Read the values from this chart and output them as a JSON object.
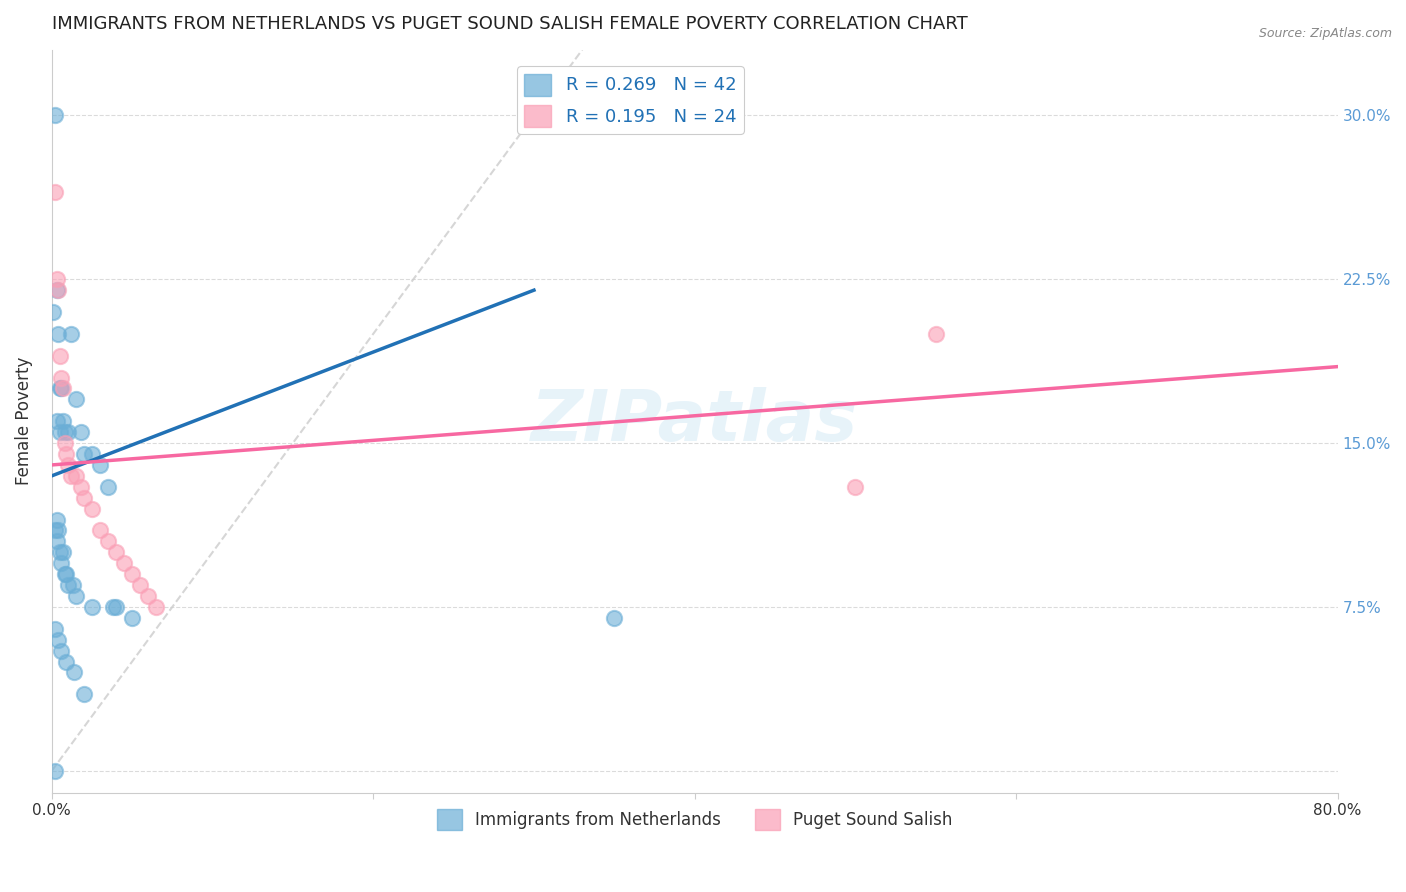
{
  "title": "IMMIGRANTS FROM NETHERLANDS VS PUGET SOUND SALISH FEMALE POVERTY CORRELATION CHART",
  "source": "Source: ZipAtlas.com",
  "ylabel": "Female Poverty",
  "yticks": [
    0.0,
    0.075,
    0.15,
    0.225,
    0.3
  ],
  "ytick_labels": [
    "",
    "7.5%",
    "15.0%",
    "22.5%",
    "30.0%"
  ],
  "xlim": [
    0.0,
    0.8
  ],
  "ylim": [
    -0.01,
    0.33
  ],
  "watermark": "ZIPatlas",
  "legend_r1": "R = 0.269",
  "legend_n1": "N = 42",
  "legend_r2": "R = 0.195",
  "legend_n2": "N = 24",
  "color_blue": "#6baed6",
  "color_pink": "#fa9fb5",
  "color_blue_line": "#2171b5",
  "color_pink_line": "#f768a1",
  "color_diag": "#cccccc",
  "scatter_blue_x": [
    0.002,
    0.003,
    0.001,
    0.004,
    0.006,
    0.005,
    0.003,
    0.007,
    0.008,
    0.005,
    0.01,
    0.012,
    0.015,
    0.018,
    0.02,
    0.025,
    0.03,
    0.035,
    0.04,
    0.05,
    0.002,
    0.003,
    0.004,
    0.003,
    0.005,
    0.007,
    0.006,
    0.008,
    0.009,
    0.01,
    0.013,
    0.015,
    0.025,
    0.038,
    0.002,
    0.004,
    0.006,
    0.009,
    0.014,
    0.02,
    0.35,
    0.002
  ],
  "scatter_blue_y": [
    0.3,
    0.22,
    0.21,
    0.2,
    0.175,
    0.175,
    0.16,
    0.16,
    0.155,
    0.155,
    0.155,
    0.2,
    0.17,
    0.155,
    0.145,
    0.145,
    0.14,
    0.13,
    0.075,
    0.07,
    0.11,
    0.115,
    0.11,
    0.105,
    0.1,
    0.1,
    0.095,
    0.09,
    0.09,
    0.085,
    0.085,
    0.08,
    0.075,
    0.075,
    0.065,
    0.06,
    0.055,
    0.05,
    0.045,
    0.035,
    0.07,
    0.0
  ],
  "scatter_pink_x": [
    0.002,
    0.003,
    0.004,
    0.005,
    0.006,
    0.007,
    0.008,
    0.009,
    0.01,
    0.012,
    0.015,
    0.018,
    0.02,
    0.025,
    0.03,
    0.035,
    0.04,
    0.045,
    0.05,
    0.055,
    0.06,
    0.065,
    0.5,
    0.55
  ],
  "scatter_pink_y": [
    0.265,
    0.225,
    0.22,
    0.19,
    0.18,
    0.175,
    0.15,
    0.145,
    0.14,
    0.135,
    0.135,
    0.13,
    0.125,
    0.12,
    0.11,
    0.105,
    0.1,
    0.095,
    0.09,
    0.085,
    0.08,
    0.075,
    0.13,
    0.2
  ],
  "blue_line_x": [
    0.0,
    0.3
  ],
  "blue_line_y": [
    0.135,
    0.22
  ],
  "pink_line_x": [
    0.0,
    0.8
  ],
  "pink_line_y": [
    0.14,
    0.185
  ],
  "diag_line_x": [
    0.0,
    0.33
  ],
  "diag_line_y": [
    0.0,
    0.33
  ],
  "legend1_label": "Immigrants from Netherlands",
  "legend2_label": "Puget Sound Salish"
}
